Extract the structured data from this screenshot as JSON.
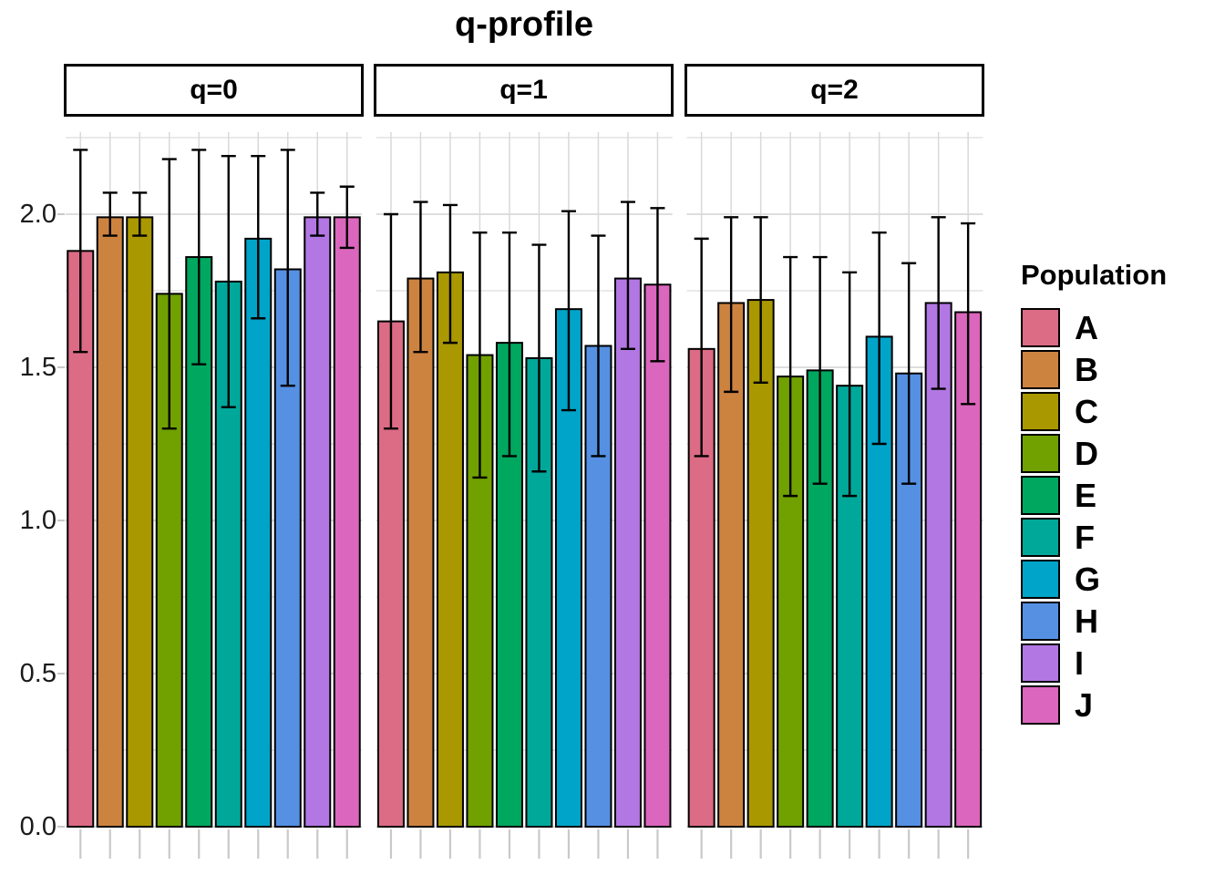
{
  "title": "q-profile",
  "chart_data": {
    "type": "bar",
    "title": "q-profile",
    "subtitle": "",
    "xlabel": "",
    "ylabel": "",
    "categories": [
      "A",
      "B",
      "C",
      "D",
      "E",
      "F",
      "G",
      "H",
      "I",
      "J"
    ],
    "colors": [
      "#DC6B85",
      "#CD8340",
      "#A99800",
      "#70A100",
      "#00A75F",
      "#00A89A",
      "#00A4C9",
      "#5590E3",
      "#B277E3",
      "#DB66BD"
    ],
    "facets": [
      {
        "label": "q=0",
        "values": [
          1.88,
          1.99,
          1.99,
          1.74,
          1.86,
          1.78,
          1.92,
          1.82,
          1.99,
          1.99
        ],
        "err_low": [
          1.55,
          1.93,
          1.93,
          1.3,
          1.51,
          1.37,
          1.66,
          1.44,
          1.93,
          1.89
        ],
        "err_high": [
          2.21,
          2.07,
          2.07,
          2.18,
          2.21,
          2.19,
          2.19,
          2.21,
          2.07,
          2.09
        ]
      },
      {
        "label": "q=1",
        "values": [
          1.65,
          1.79,
          1.81,
          1.54,
          1.58,
          1.53,
          1.69,
          1.57,
          1.79,
          1.77
        ],
        "err_low": [
          1.3,
          1.55,
          1.58,
          1.14,
          1.21,
          1.16,
          1.36,
          1.21,
          1.56,
          1.52
        ],
        "err_high": [
          2.0,
          2.04,
          2.03,
          1.94,
          1.94,
          1.9,
          2.01,
          1.93,
          2.04,
          2.02
        ]
      },
      {
        "label": "q=2",
        "values": [
          1.56,
          1.71,
          1.72,
          1.47,
          1.49,
          1.44,
          1.6,
          1.48,
          1.71,
          1.68
        ],
        "err_low": [
          1.21,
          1.42,
          1.45,
          1.08,
          1.12,
          1.08,
          1.25,
          1.12,
          1.43,
          1.38
        ],
        "err_high": [
          1.92,
          1.99,
          1.99,
          1.86,
          1.86,
          1.81,
          1.94,
          1.84,
          1.99,
          1.97
        ]
      }
    ],
    "ylim": [
      0,
      2.27
    ],
    "yticks": {
      "labels": [
        "0.0",
        "0.5",
        "1.0",
        "1.5",
        "2.0"
      ],
      "values": [
        0,
        0.5,
        1.0,
        1.5,
        2.0
      ]
    },
    "yticks_minor": [
      0.25,
      0.75,
      1.25,
      1.75,
      2.25
    ],
    "grid": "on",
    "error_bars": true,
    "legend": {
      "title": "Population",
      "position": "right"
    },
    "style_colors": {
      "background": "#FFFFFF",
      "grid_major": "#D4D4D4",
      "grid_minor": "#DEDEDE",
      "grid_vertical": "#D9D9D9",
      "tick": "#C9C9C9",
      "bar_outline": "#000000",
      "axis_text": "#1A1A1A"
    }
  }
}
